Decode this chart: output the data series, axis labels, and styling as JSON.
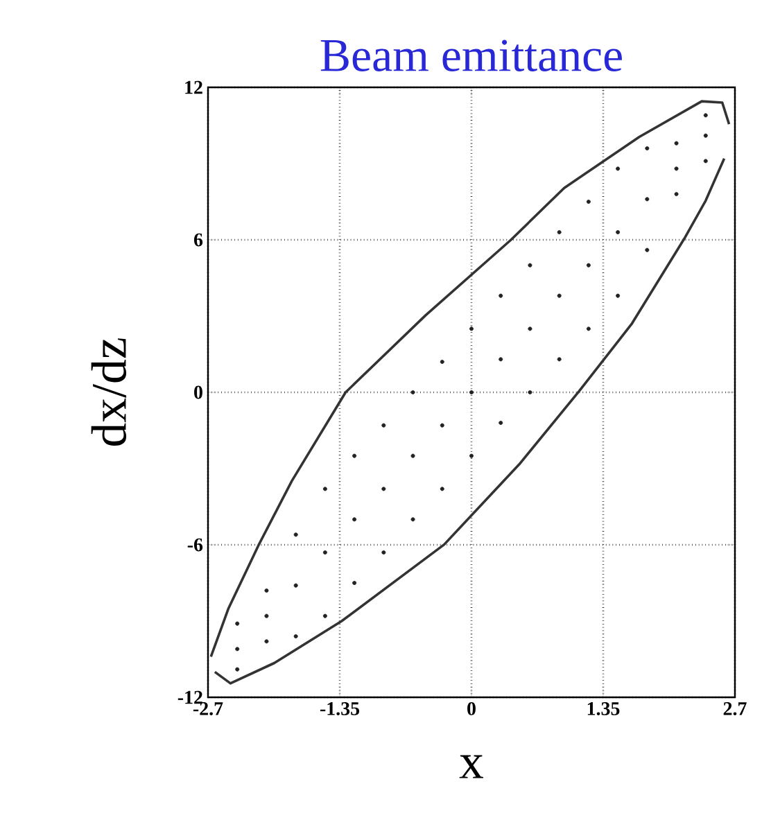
{
  "chart_data": {
    "type": "scatter",
    "title": "Beam emittance",
    "xlabel": "x",
    "ylabel": "dx/dz",
    "xlim": [
      -2.7,
      2.7
    ],
    "ylim": [
      -12,
      12
    ],
    "xticks": [
      -2.7,
      -1.35,
      0,
      1.35,
      2.7
    ],
    "yticks": [
      -12,
      -6,
      0,
      6,
      12
    ],
    "grid": true,
    "series": [
      {
        "color": "#222222",
        "marker": "circle",
        "x": [
          -2.4,
          -2.4,
          -2.4,
          -2.1,
          -2.1,
          -2.1,
          -1.8,
          -1.8,
          -1.8,
          -1.5,
          -1.5,
          -1.5,
          -1.2,
          -1.2,
          -1.2,
          -0.9,
          -0.9,
          -0.9,
          -0.6,
          -0.6,
          -0.6,
          -0.3,
          -0.3,
          -0.3,
          0,
          0,
          0,
          0.3,
          0.3,
          0.3,
          0.6,
          0.6,
          0.6,
          0.9,
          0.9,
          0.9,
          1.2,
          1.2,
          1.2,
          1.5,
          1.5,
          1.5,
          1.8,
          1.8,
          1.8,
          2.1,
          2.1,
          2.1,
          2.4,
          2.4,
          2.4
        ],
        "values": [
          -10.9,
          -10.1,
          -9.1,
          -9.8,
          -8.8,
          -7.8,
          -9.6,
          -7.6,
          -5.6,
          -8.8,
          -6.3,
          -3.8,
          -7.5,
          -5.0,
          -2.5,
          -6.3,
          -3.8,
          -1.3,
          -5.0,
          -2.5,
          0,
          -3.8,
          -1.3,
          1.2,
          -2.5,
          0,
          2.5,
          -1.2,
          1.3,
          3.8,
          0,
          2.5,
          5.0,
          1.3,
          3.8,
          6.3,
          2.5,
          5.0,
          7.5,
          3.8,
          6.3,
          8.8,
          5.6,
          7.6,
          9.6,
          7.8,
          8.8,
          9.8,
          9.1,
          10.1,
          10.9
        ]
      },
      {
        "type": "line",
        "color": "#333333",
        "marker": "none",
        "line_style": "solid",
        "x": [
          -2.67,
          -2.49,
          -2.18,
          -1.84,
          -1.29,
          -0.47,
          0.405,
          0.95,
          1.72,
          2.36,
          2.57,
          2.64
        ],
        "values": [
          -10.4,
          -8.5,
          -6,
          -3.48,
          0,
          3.03,
          6,
          8.04,
          10.05,
          11.45,
          11.4,
          10.55
        ]
      },
      {
        "type": "line",
        "color": "#333333",
        "marker": "none",
        "line_style": "solid",
        "x": [
          -2.63,
          -2.47,
          -2.02,
          -1.33,
          -0.28,
          0.49,
          1.1,
          1.64,
          2.18,
          2.4,
          2.59
        ],
        "values": [
          -11.0,
          -11.45,
          -10.65,
          -9.0,
          -5.99,
          -2.83,
          0.03,
          2.68,
          6.04,
          7.54,
          9.2
        ]
      }
    ]
  }
}
